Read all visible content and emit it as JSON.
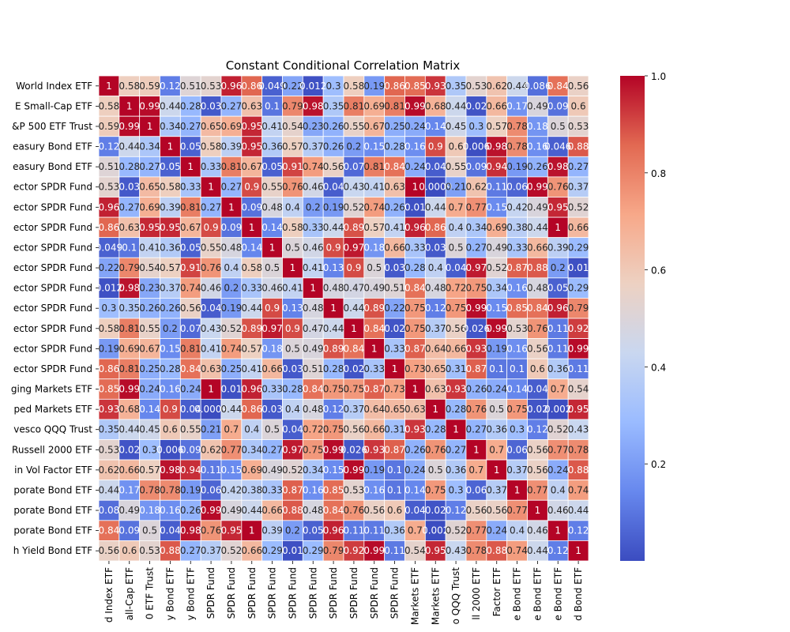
{
  "chart_data": {
    "type": "heatmap",
    "title": "Constant Conditional Correlation Matrix",
    "xlabel": "",
    "ylabel": "",
    "ylabels": [
      "World Index ETF",
      "E Small-Cap ETF",
      "&P 500 ETF Trust",
      "easury Bond ETF",
      "easury Bond ETF",
      "ector SPDR Fund",
      "ector SPDR Fund",
      "ector SPDR Fund",
      "ector SPDR Fund",
      "ector SPDR Fund",
      "ector SPDR Fund",
      "ector SPDR Fund",
      "ector SPDR Fund",
      "ector SPDR Fund",
      "ector SPDR Fund",
      "ging Markets ETF",
      "ped Markets ETF",
      "vesco QQQ Trust",
      "Russell 2000 ETF",
      "in Vol Factor ETF",
      "porate Bond ETF",
      "porate Bond ETF",
      "porate Bond ETF",
      "h Yield Bond ETF"
    ],
    "xlabels": [
      "d Index ETF",
      "all-Cap ETF",
      "0 ETF Trust",
      "y Bond ETF",
      "y Bond ETF",
      "SPDR Fund",
      "SPDR Fund",
      "SPDR Fund",
      "SPDR Fund",
      "SPDR Fund",
      "SPDR Fund",
      "SPDR Fund",
      "SPDR Fund",
      "SPDR Fund",
      "SPDR Fund",
      "Markets ETF",
      "Markets ETF",
      "o QQQ Trust",
      "ll 2000 ETF",
      "Factor ETF",
      "e Bond ETF",
      "e Bond ETF",
      "e Bond ETF",
      "d Bond ETF"
    ],
    "values": [
      [
        1,
        0.58,
        0.59,
        0.12,
        0.51,
        0.53,
        0.96,
        0.86,
        0.049,
        0.22,
        0.012,
        0.3,
        0.58,
        0.19,
        0.86,
        0.85,
        0.93,
        0.35,
        0.53,
        0.62,
        0.44,
        0.086,
        0.84,
        0.56
      ],
      [
        0.58,
        1,
        0.99,
        0.44,
        0.28,
        0.03,
        0.27,
        0.63,
        0.1,
        0.79,
        0.98,
        0.35,
        0.81,
        0.69,
        0.81,
        0.99,
        0.68,
        0.44,
        0.02,
        0.66,
        0.17,
        0.49,
        0.09,
        0.6
      ],
      [
        0.59,
        0.99,
        1,
        0.34,
        0.27,
        0.65,
        0.69,
        0.95,
        0.41,
        0.54,
        0.23,
        0.26,
        0.55,
        0.67,
        0.25,
        0.24,
        0.14,
        0.45,
        0.3,
        0.57,
        0.78,
        0.18,
        0.5,
        0.53
      ],
      [
        0.12,
        0.44,
        0.34,
        1,
        0.05,
        0.58,
        0.39,
        0.95,
        0.36,
        0.57,
        0.37,
        0.26,
        0.2,
        0.15,
        0.28,
        0.16,
        0.9,
        0.6,
        0.006,
        0.98,
        0.78,
        0.16,
        0.046,
        0.88
      ],
      [
        0.51,
        0.28,
        0.27,
        0.05,
        1,
        0.33,
        0.81,
        0.67,
        0.05,
        0.91,
        0.74,
        0.56,
        0.07,
        0.81,
        0.84,
        0.24,
        0.04,
        0.55,
        0.09,
        0.94,
        0.19,
        0.26,
        0.98,
        0.27
      ],
      [
        0.53,
        0.03,
        0.65,
        0.58,
        0.33,
        1,
        0.27,
        0.9,
        0.55,
        0.76,
        0.46,
        0.04,
        0.43,
        0.41,
        0.63,
        1,
        0.0009,
        0.21,
        0.62,
        0.11,
        0.06,
        0.99,
        0.76,
        0.37
      ],
      [
        0.96,
        0.27,
        0.69,
        0.39,
        0.81,
        0.27,
        1,
        0.09,
        0.48,
        0.4,
        0.2,
        0.19,
        0.52,
        0.74,
        0.26,
        0.01,
        0.44,
        0.7,
        0.77,
        0.15,
        0.42,
        0.49,
        0.95,
        0.52
      ],
      [
        0.86,
        0.63,
        0.95,
        0.95,
        0.67,
        0.9,
        0.09,
        1,
        0.14,
        0.58,
        0.33,
        0.44,
        0.89,
        0.57,
        0.41,
        0.96,
        0.86,
        0.4,
        0.34,
        0.69,
        0.38,
        0.44,
        1,
        0.66
      ],
      [
        0.049,
        0.1,
        0.41,
        0.36,
        0.05,
        0.55,
        0.48,
        0.14,
        1,
        0.5,
        0.46,
        0.9,
        0.97,
        0.18,
        0.66,
        0.33,
        0.03,
        0.5,
        0.27,
        0.49,
        0.33,
        0.66,
        0.39,
        0.29
      ],
      [
        0.22,
        0.79,
        0.54,
        0.57,
        0.91,
        0.76,
        0.4,
        0.58,
        0.5,
        1,
        0.41,
        0.13,
        0.9,
        0.5,
        0.03,
        0.28,
        0.4,
        0.04,
        0.97,
        0.52,
        0.87,
        0.88,
        0.2,
        0.01
      ],
      [
        0.012,
        0.98,
        0.23,
        0.37,
        0.74,
        0.46,
        0.2,
        0.33,
        0.46,
        0.41,
        1,
        0.48,
        0.47,
        0.49,
        0.51,
        0.84,
        0.48,
        0.72,
        0.75,
        0.34,
        0.16,
        0.48,
        0.05,
        0.29
      ],
      [
        0.3,
        0.35,
        0.26,
        0.26,
        0.56,
        0.04,
        0.19,
        0.44,
        0.9,
        0.13,
        0.48,
        1,
        0.44,
        0.89,
        0.22,
        0.75,
        0.12,
        0.75,
        0.99,
        0.15,
        0.85,
        0.84,
        0.96,
        0.79
      ],
      [
        0.58,
        0.81,
        0.55,
        0.2,
        0.07,
        0.43,
        0.52,
        0.89,
        0.97,
        0.9,
        0.47,
        0.44,
        1,
        0.84,
        0.02,
        0.75,
        0.37,
        0.56,
        0.026,
        0.99,
        0.53,
        0.76,
        0.11,
        0.92
      ],
      [
        0.19,
        0.69,
        0.67,
        0.15,
        0.81,
        0.41,
        0.74,
        0.57,
        0.18,
        0.5,
        0.49,
        0.89,
        0.84,
        1,
        0.33,
        0.87,
        0.64,
        0.66,
        0.93,
        0.19,
        0.16,
        0.56,
        0.11,
        0.99
      ],
      [
        0.86,
        0.81,
        0.25,
        0.28,
        0.84,
        0.63,
        0.25,
        0.41,
        0.66,
        0.03,
        0.51,
        0.28,
        0.02,
        0.33,
        1,
        0.73,
        0.65,
        0.31,
        0.87,
        0.1,
        0.1,
        0.6,
        0.36,
        0.11
      ],
      [
        0.85,
        0.99,
        0.24,
        0.16,
        0.24,
        1,
        0.01,
        0.96,
        0.33,
        0.28,
        0.84,
        0.75,
        0.75,
        0.87,
        0.73,
        1,
        0.63,
        0.93,
        0.26,
        0.24,
        0.14,
        0.04,
        0.7,
        0.54
      ],
      [
        0.93,
        0.68,
        0.14,
        0.9,
        0.04,
        0.0009,
        0.44,
        0.86,
        0.03,
        0.4,
        0.48,
        0.12,
        0.37,
        0.64,
        0.65,
        0.63,
        1,
        0.28,
        0.76,
        0.5,
        0.75,
        0.02,
        0.002,
        0.95
      ],
      [
        0.35,
        0.44,
        0.45,
        0.6,
        0.55,
        0.21,
        0.7,
        0.4,
        0.5,
        0.04,
        0.72,
        0.75,
        0.56,
        0.66,
        0.31,
        0.93,
        0.28,
        1,
        0.27,
        0.36,
        0.3,
        0.12,
        0.52,
        0.43
      ],
      [
        0.53,
        0.02,
        0.3,
        0.006,
        0.09,
        0.62,
        0.77,
        0.34,
        0.27,
        0.97,
        0.75,
        0.99,
        0.026,
        0.93,
        0.87,
        0.26,
        0.76,
        0.27,
        1,
        0.7,
        0.06,
        0.56,
        0.77,
        0.78
      ],
      [
        0.62,
        0.66,
        0.57,
        0.98,
        0.94,
        0.11,
        0.15,
        0.69,
        0.49,
        0.52,
        0.34,
        0.15,
        0.99,
        0.19,
        0.1,
        0.24,
        0.5,
        0.36,
        0.7,
        1,
        0.37,
        0.56,
        0.24,
        0.88
      ],
      [
        0.44,
        0.17,
        0.78,
        0.78,
        0.19,
        0.06,
        0.42,
        0.38,
        0.33,
        0.87,
        0.16,
        0.85,
        0.53,
        0.16,
        0.1,
        0.14,
        0.75,
        0.3,
        0.06,
        0.37,
        1,
        0.77,
        0.4,
        0.74
      ],
      [
        0.08,
        0.49,
        0.18,
        0.16,
        0.26,
        0.99,
        0.49,
        0.44,
        0.66,
        0.88,
        0.48,
        0.84,
        0.76,
        0.56,
        0.6,
        0.04,
        0.02,
        0.12,
        0.56,
        0.56,
        0.77,
        1,
        0.46,
        0.44
      ],
      [
        0.84,
        0.09,
        0.5,
        0.04,
        0.98,
        0.76,
        0.95,
        1,
        0.39,
        0.2,
        0.05,
        0.96,
        0.11,
        0.11,
        0.36,
        0.7,
        0.002,
        0.52,
        0.77,
        0.24,
        0.4,
        0.46,
        1,
        0.12
      ],
      [
        0.56,
        0.6,
        0.53,
        0.88,
        0.27,
        0.37,
        0.52,
        0.66,
        0.29,
        0.01,
        0.29,
        0.79,
        0.92,
        0.99,
        0.11,
        0.54,
        0.95,
        0.43,
        0.78,
        0.88,
        0.74,
        0.44,
        0.12,
        1
      ]
    ],
    "cell_labels": [
      [
        "1",
        "0.58",
        "0.59",
        "0.12",
        "0.51",
        "0.53",
        "0.96",
        "0.86",
        "0.049",
        "0.22",
        "0.012",
        "0.3",
        "0.58",
        "0.19",
        "0.86",
        "0.85",
        "0.93",
        "0.35",
        "0.53",
        "0.62",
        "0.44",
        "0.086",
        "0.84",
        "0.56"
      ],
      [
        "0.58",
        "1",
        "0.99",
        "0.44",
        "0.28",
        "0.03",
        "0.27",
        "0.63",
        "0.1",
        "0.79",
        "0.98",
        "0.35",
        "0.81",
        "0.69",
        "0.81",
        "0.99",
        "0.68",
        "0.44",
        "0.02",
        "0.66",
        "0.17",
        "0.49",
        "0.09",
        "0.6"
      ],
      [
        "0.59",
        "0.99",
        "1",
        "0.34",
        "0.27",
        "0.65",
        "0.69",
        "0.95",
        "0.41",
        "0.54",
        "0.23",
        "0.26",
        "0.55",
        "0.67",
        "0.25",
        "0.24",
        "0.14",
        "0.45",
        "0.3",
        "0.57",
        "0.78",
        "0.18",
        "0.5",
        "0.53"
      ],
      [
        "0.12",
        "0.44",
        "0.34",
        "1",
        "0.05",
        "0.58",
        "0.39",
        "0.95",
        "0.36",
        "0.57",
        "0.37",
        "0.26",
        "0.2",
        "0.15",
        "0.28",
        "0.16",
        "0.9",
        "0.6",
        "0.006",
        "0.98",
        "0.78",
        "0.16",
        "0.046",
        "0.88"
      ],
      [
        "0.51",
        "0.28",
        "0.27",
        "0.05",
        "1",
        "0.33",
        "0.81",
        "0.67",
        "0.05",
        "0.91",
        "0.74",
        "0.56",
        "0.07",
        "0.81",
        "0.84",
        "0.24",
        "0.04",
        "0.55",
        "0.09",
        "0.94",
        "0.19",
        "0.26",
        "0.98",
        "0.27"
      ],
      [
        "0.53",
        "0.03",
        "0.65",
        "0.58",
        "0.33",
        "1",
        "0.27",
        "0.9",
        "0.55",
        "0.76",
        "0.46",
        "0.04",
        "0.43",
        "0.41",
        "0.63",
        "1",
        "0.0009",
        "0.21",
        "0.62",
        "0.11",
        "0.06",
        "0.99",
        "0.76",
        "0.37"
      ],
      [
        "0.96",
        "0.27",
        "0.69",
        "0.39",
        "0.81",
        "0.27",
        "1",
        "0.09",
        "0.48",
        "0.4",
        "0.2",
        "0.19",
        "0.52",
        "0.74",
        "0.26",
        "0.01",
        "0.44",
        "0.7",
        "0.77",
        "0.15",
        "0.42",
        "0.49",
        "0.95",
        "0.52"
      ],
      [
        "0.86",
        "0.63",
        "0.95",
        "0.95",
        "0.67",
        "0.9",
        "0.09",
        "1",
        "0.14",
        "0.58",
        "0.33",
        "0.44",
        "0.89",
        "0.57",
        "0.41",
        "0.96",
        "0.86",
        "0.4",
        "0.34",
        "0.69",
        "0.38",
        "0.44",
        "1",
        "0.66"
      ],
      [
        "0.049",
        "0.1",
        "0.41",
        "0.36",
        "0.05",
        "0.55",
        "0.48",
        "0.14",
        "1",
        "0.5",
        "0.46",
        "0.9",
        "0.97",
        "0.18",
        "0.66",
        "0.33",
        "0.03",
        "0.5",
        "0.27",
        "0.49",
        "0.33",
        "0.66",
        "0.39",
        "0.29"
      ],
      [
        "0.22",
        "0.79",
        "0.54",
        "0.57",
        "0.91",
        "0.76",
        "0.4",
        "0.58",
        "0.5",
        "1",
        "0.41",
        "0.13",
        "0.9",
        "0.5",
        "0.03",
        "0.28",
        "0.4",
        "0.04",
        "0.97",
        "0.52",
        "0.87",
        "0.88",
        "0.2",
        "0.01"
      ],
      [
        "0.012",
        "0.98",
        "0.23",
        "0.37",
        "0.74",
        "0.46",
        "0.2",
        "0.33",
        "0.46",
        "0.41",
        "1",
        "0.48",
        "0.47",
        "0.49",
        "0.51",
        "0.84",
        "0.48",
        "0.72",
        "0.75",
        "0.34",
        "0.16",
        "0.48",
        "0.05",
        "0.29"
      ],
      [
        "0.3",
        "0.35",
        "0.26",
        "0.26",
        "0.56",
        "0.04",
        "0.19",
        "0.44",
        "0.9",
        "0.13",
        "0.48",
        "1",
        "0.44",
        "0.89",
        "0.22",
        "0.75",
        "0.12",
        "0.75",
        "0.99",
        "0.15",
        "0.85",
        "0.84",
        "0.96",
        "0.79"
      ],
      [
        "0.58",
        "0.81",
        "0.55",
        "0.2",
        "0.07",
        "0.43",
        "0.52",
        "0.89",
        "0.97",
        "0.9",
        "0.47",
        "0.44",
        "1",
        "0.84",
        "0.02",
        "0.75",
        "0.37",
        "0.56",
        "0.026",
        "0.99",
        "0.53",
        "0.76",
        "0.11",
        "0.92"
      ],
      [
        "0.19",
        "0.69",
        "0.67",
        "0.15",
        "0.81",
        "0.41",
        "0.74",
        "0.57",
        "0.18",
        "0.5",
        "0.49",
        "0.89",
        "0.84",
        "1",
        "0.33",
        "0.87",
        "0.64",
        "0.66",
        "0.93",
        "0.19",
        "0.16",
        "0.56",
        "0.11",
        "0.99"
      ],
      [
        "0.86",
        "0.81",
        "0.25",
        "0.28",
        "0.84",
        "0.63",
        "0.25",
        "0.41",
        "0.66",
        "0.03",
        "0.51",
        "0.28",
        "0.02",
        "0.33",
        "1",
        "0.73",
        "0.65",
        "0.31",
        "0.87",
        "0.1",
        "0.1",
        "0.6",
        "0.36",
        "0.11"
      ],
      [
        "0.85",
        "0.99",
        "0.24",
        "0.16",
        "0.24",
        "1",
        "0.01",
        "0.96",
        "0.33",
        "0.28",
        "0.84",
        "0.75",
        "0.75",
        "0.87",
        "0.73",
        "1",
        "0.63",
        "0.93",
        "0.26",
        "0.24",
        "0.14",
        "0.04",
        "0.7",
        "0.54"
      ],
      [
        "0.93",
        "0.68",
        "0.14",
        "0.9",
        "0.04",
        "0.0009",
        "0.44",
        "0.86",
        "0.03",
        "0.4",
        "0.48",
        "0.12",
        "0.37",
        "0.64",
        "0.65",
        "0.63",
        "1",
        "0.28",
        "0.76",
        "0.5",
        "0.75",
        "0.02",
        "0.002",
        "0.95"
      ],
      [
        "0.35",
        "0.44",
        "0.45",
        "0.6",
        "0.55",
        "0.21",
        "0.7",
        "0.4",
        "0.5",
        "0.04",
        "0.72",
        "0.75",
        "0.56",
        "0.66",
        "0.31",
        "0.93",
        "0.28",
        "1",
        "0.27",
        "0.36",
        "0.3",
        "0.12",
        "0.52",
        "0.43"
      ],
      [
        "0.53",
        "0.02",
        "0.3",
        "0.006",
        "0.09",
        "0.62",
        "0.77",
        "0.34",
        "0.27",
        "0.97",
        "0.75",
        "0.99",
        "0.026",
        "0.93",
        "0.87",
        "0.26",
        "0.76",
        "0.27",
        "1",
        "0.7",
        "0.06",
        "0.56",
        "0.77",
        "0.78"
      ],
      [
        "0.62",
        "0.66",
        "0.57",
        "0.98",
        "0.94",
        "0.11",
        "0.15",
        "0.69",
        "0.49",
        "0.52",
        "0.34",
        "0.15",
        "0.99",
        "0.19",
        "0.1",
        "0.24",
        "0.5",
        "0.36",
        "0.7",
        "1",
        "0.37",
        "0.56",
        "0.24",
        "0.88"
      ],
      [
        "0.44",
        "0.17",
        "0.78",
        "0.78",
        "0.19",
        "0.06",
        "0.42",
        "0.38",
        "0.33",
        "0.87",
        "0.16",
        "0.85",
        "0.53",
        "0.16",
        "0.1",
        "0.14",
        "0.75",
        "0.3",
        "0.06",
        "0.37",
        "1",
        "0.77",
        "0.4",
        "0.74"
      ],
      [
        "0.08",
        "0.49",
        "0.18",
        "0.16",
        "0.26",
        "0.99",
        "0.49",
        "0.44",
        "0.66",
        "0.88",
        "0.48",
        "0.84",
        "0.76",
        "0.56",
        "0.6",
        "0.04",
        "0.02",
        "0.12",
        "0.56",
        "0.56",
        "0.77",
        "1",
        "0.46",
        "0.44"
      ],
      [
        "0.84",
        "0.09",
        "0.5",
        "0.04",
        "0.98",
        "0.76",
        "0.95",
        "1",
        "0.39",
        "0.2",
        "0.05",
        "0.96",
        "0.11",
        "0.11",
        "0.36",
        "0.7",
        "0.002",
        "0.52",
        "0.77",
        "0.24",
        "0.4",
        "0.46",
        "1",
        "0.12"
      ],
      [
        "0.56",
        "0.6",
        "0.53",
        "0.88",
        "0.27",
        "0.37",
        "0.52",
        "0.66",
        "0.29",
        "0.01",
        "0.29",
        "0.79",
        "0.92",
        "0.99",
        "0.11",
        "0.54",
        "0.95",
        "0.43",
        "0.78",
        "0.88",
        "0.74",
        "0.44",
        "0.12",
        "1"
      ]
    ],
    "vmin": 0,
    "vmax": 1,
    "colormap": "coolwarm",
    "colormap_stops": [
      "#3b4cc0",
      "#6788ee",
      "#9abbff",
      "#c9d7f0",
      "#edd1c2",
      "#f7a889",
      "#e26952",
      "#b40426"
    ],
    "colorbar_ticks": [
      "0.2",
      "0.4",
      "0.6",
      "0.8",
      "1.0"
    ],
    "colorbar_tick_values": [
      0.2,
      0.4,
      0.6,
      0.8,
      1.0
    ],
    "grid": true,
    "cell_border_color": "#ffffff",
    "legend": "colorbar-right"
  }
}
